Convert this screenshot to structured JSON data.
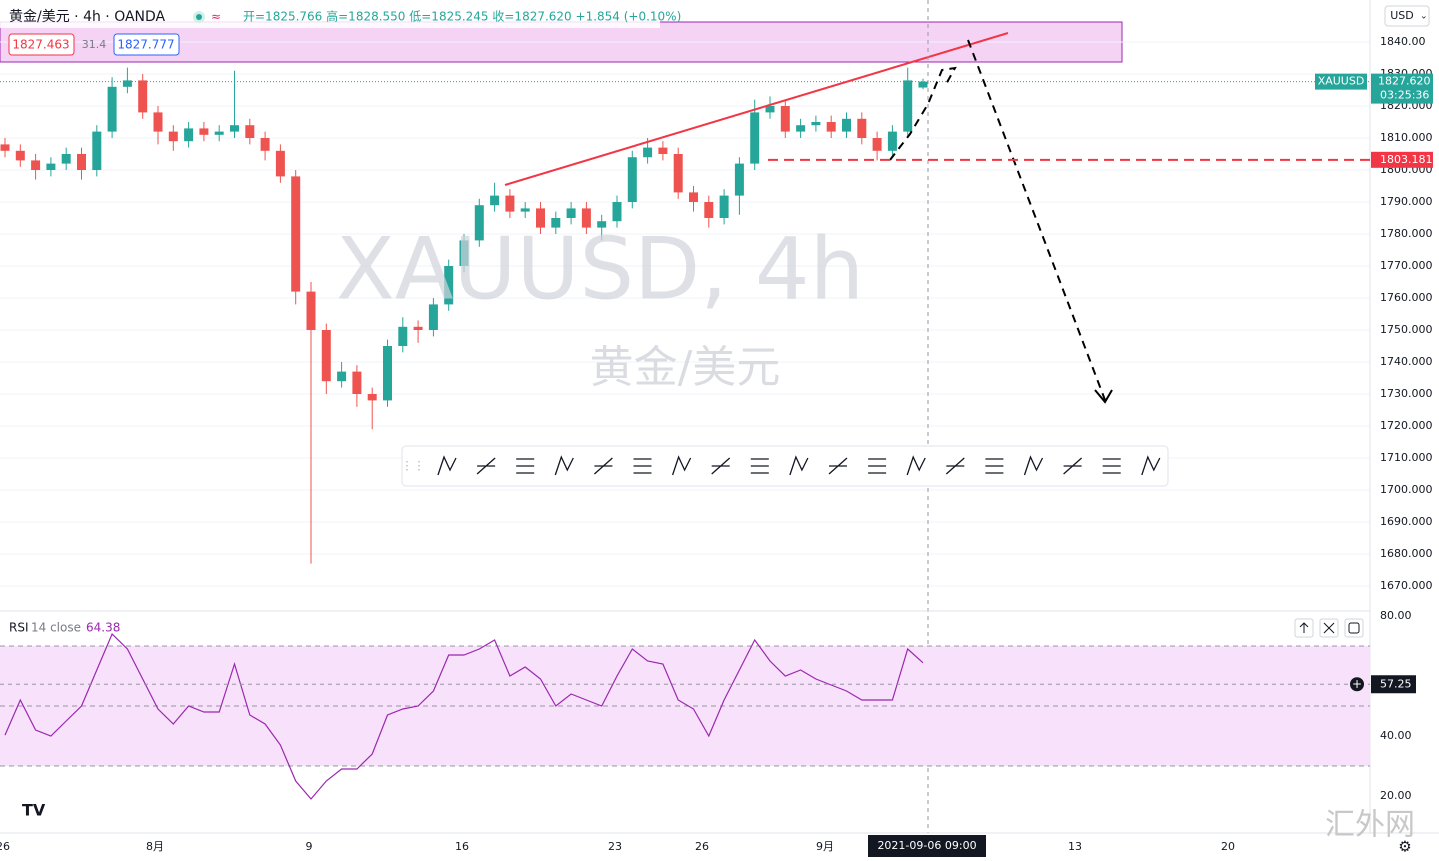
{
  "header": {
    "symbol": "黄金/美元 · 4h · OANDA",
    "ohlc": "开=1825.766 高=1828.550 低=1825.245 收=1827.620 +1.854 (+0.10%)",
    "bid": "1827.463",
    "spread": "31.4",
    "ask": "1827.777",
    "currency": "USD"
  },
  "watermark": {
    "line1": "XAUUSD, 4h",
    "line2": "黄金/美元"
  },
  "site_mark": "汇外网",
  "chart_data": {
    "type": "candlestick",
    "up_color": "#26a69a",
    "down_color": "#ef5350",
    "open": [
      1808,
      1806,
      1803,
      1800,
      1802,
      1805,
      1800,
      1812,
      1826,
      1828,
      1818,
      1812,
      1809,
      1813,
      1811,
      1812,
      1814,
      1810,
      1806,
      1798,
      1762,
      1750,
      1734,
      1737,
      1730,
      1728,
      1745,
      1751,
      1750,
      1758,
      1770,
      1778,
      1789,
      1792,
      1787,
      1788,
      1782,
      1785,
      1788,
      1782,
      1784,
      1790,
      1804,
      1807,
      1805,
      1793,
      1790,
      1785,
      1792,
      1802,
      1818,
      1820,
      1812,
      1814,
      1815,
      1812,
      1816,
      1810,
      1806,
      1812,
      1825.766
    ],
    "high": [
      1810,
      1808,
      1805,
      1804,
      1807,
      1807,
      1814,
      1829,
      1832,
      1830,
      1820,
      1814,
      1815,
      1815,
      1814,
      1831,
      1816,
      1812,
      1808,
      1800,
      1765,
      1752,
      1740,
      1739,
      1732,
      1747,
      1754,
      1753,
      1760,
      1772,
      1780,
      1791,
      1796,
      1794,
      1790,
      1790,
      1787,
      1790,
      1790,
      1786,
      1792,
      1806,
      1810,
      1809,
      1807,
      1795,
      1792,
      1794,
      1804,
      1822,
      1823,
      1822,
      1816,
      1817,
      1817,
      1818,
      1818,
      1812,
      1814,
      1832,
      1828.55
    ],
    "low": [
      1804,
      1801,
      1797,
      1798,
      1800,
      1797,
      1798,
      1810,
      1824,
      1816,
      1808,
      1806,
      1807,
      1809,
      1809,
      1810,
      1808,
      1803,
      1796,
      1758,
      1677,
      1730,
      1732,
      1726,
      1719,
      1726,
      1743,
      1746,
      1748,
      1756,
      1768,
      1776,
      1787,
      1785,
      1785,
      1780,
      1780,
      1783,
      1780,
      1778,
      1782,
      1788,
      1802,
      1803,
      1791,
      1787,
      1782,
      1783,
      1786,
      1800,
      1816,
      1810,
      1810,
      1812,
      1810,
      1810,
      1808,
      1803,
      1804,
      1810,
      1825.245
    ],
    "close": [
      1806,
      1803,
      1800,
      1802,
      1805,
      1800,
      1812,
      1826,
      1828,
      1818,
      1812,
      1809,
      1813,
      1811,
      1812,
      1814,
      1810,
      1806,
      1798,
      1762,
      1750,
      1734,
      1737,
      1730,
      1728,
      1745,
      1751,
      1750,
      1758,
      1770,
      1778,
      1789,
      1792,
      1787,
      1788,
      1782,
      1785,
      1788,
      1782,
      1784,
      1790,
      1804,
      1807,
      1805,
      1793,
      1790,
      1785,
      1792,
      1802,
      1818,
      1820,
      1812,
      1814,
      1815,
      1812,
      1816,
      1810,
      1806,
      1812,
      1828,
      1827.62
    ],
    "ylim": [
      1662.5,
      1853.125
    ],
    "yticks": [
      {
        "value": 1840,
        "label": "1840.00"
      },
      {
        "value": 1830,
        "label": "1830.000"
      },
      {
        "value": 1820,
        "label": "1820.000"
      },
      {
        "value": 1810,
        "label": "1810.000"
      },
      {
        "value": 1800,
        "label": "1800.000"
      },
      {
        "value": 1790,
        "label": "1790.000"
      },
      {
        "value": 1780,
        "label": "1780.000"
      },
      {
        "value": 1770,
        "label": "1770.000"
      },
      {
        "value": 1760,
        "label": "1760.000"
      },
      {
        "value": 1750,
        "label": "1750.000"
      },
      {
        "value": 1740,
        "label": "1740.000"
      },
      {
        "value": 1730,
        "label": "1730.000"
      },
      {
        "value": 1720,
        "label": "1720.000"
      },
      {
        "value": 1710,
        "label": "1710.000"
      },
      {
        "value": 1700,
        "label": "1700.000"
      },
      {
        "value": 1690,
        "label": "1690.000"
      },
      {
        "value": 1680,
        "label": "1680.000"
      },
      {
        "value": 1670,
        "label": "1670.000"
      }
    ],
    "last_price": {
      "symbol": "XAUUSD",
      "value": 1827.62,
      "label": "1827.620",
      "countdown": "03:25:36"
    },
    "level": {
      "value": 1803.181,
      "label": "1803.181",
      "color": "#f23645"
    },
    "x_labels": [
      "26",
      "8月",
      "9",
      "16",
      "23",
      "26",
      "9月",
      "13",
      "20"
    ],
    "crosshair_label": "2021-09-06  09:00",
    "rsi": {
      "name": "RSI",
      "params": "14 close",
      "value_label": "64.38",
      "color": "#9c27b0",
      "values": [
        40.3,
        52,
        42,
        40,
        45,
        50,
        62,
        74,
        69,
        59,
        49,
        44,
        50,
        48,
        48,
        64,
        47,
        44,
        37,
        25,
        19,
        25,
        29,
        29,
        34,
        47,
        49,
        50,
        55,
        67,
        67,
        69,
        72,
        60,
        63,
        59,
        50,
        54,
        52,
        50,
        60,
        69,
        65,
        64,
        52,
        49,
        40,
        52,
        62,
        72,
        65,
        60,
        62,
        59,
        57,
        55,
        52,
        52,
        52,
        69,
        64.38
      ],
      "ylim": [
        8,
        81
      ],
      "band": [
        30,
        70
      ],
      "mid": 50,
      "yticks": [
        {
          "value": 80,
          "label": "80.00"
        },
        {
          "value": 40,
          "label": "40.00"
        },
        {
          "value": 20,
          "label": "20.00"
        }
      ],
      "crosshair": {
        "value": 57.25,
        "label": "57.25"
      }
    }
  }
}
